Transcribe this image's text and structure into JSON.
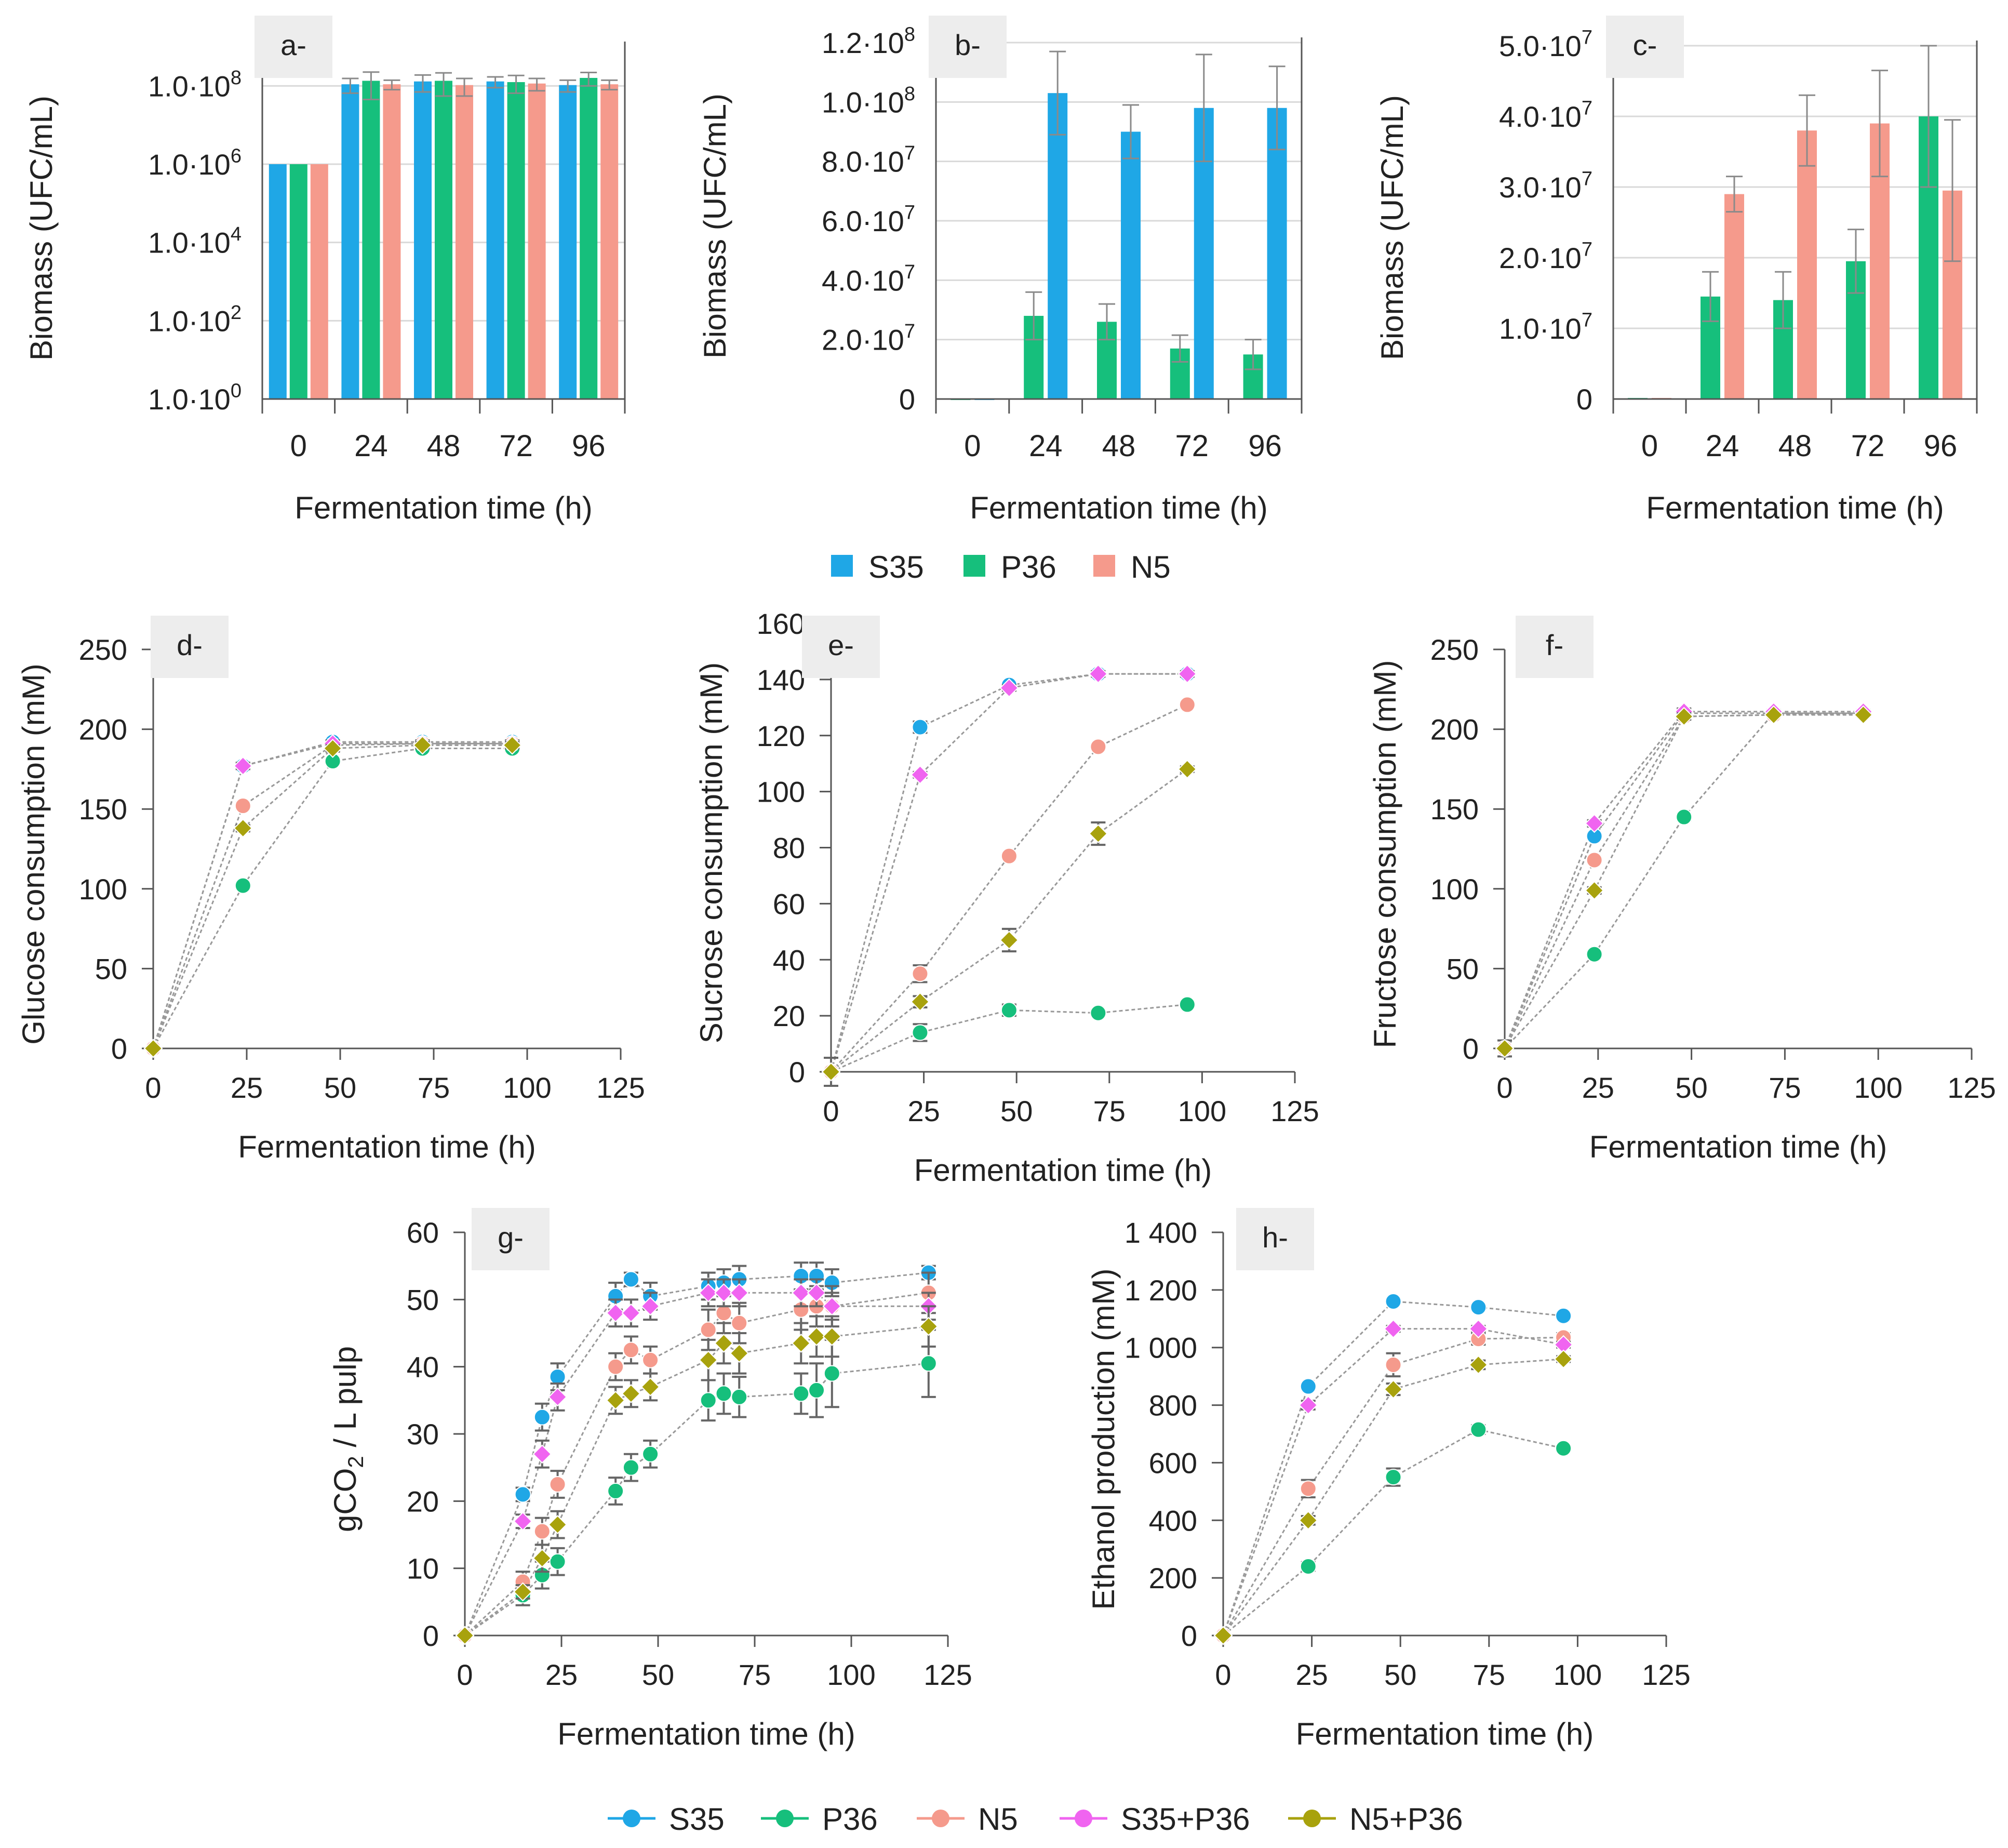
{
  "colors": {
    "S35": "#1fa7e6",
    "P36": "#16bf7c",
    "N5": "#f59a8c",
    "S35+P36": "#f064f0",
    "N5+P36": "#a8a20d",
    "axis": "#555555",
    "grid": "#d9d9d9",
    "tag_bg": "#ededed",
    "connector": "#999999"
  },
  "legend_bars": {
    "items": [
      "S35",
      "P36",
      "N5"
    ]
  },
  "legend_lines": {
    "items": [
      "S35",
      "P36",
      "N5",
      "S35+P36",
      "N5+P36"
    ]
  },
  "chart_data": [
    {
      "id": "a",
      "type": "bar",
      "panel_label": "a-",
      "yscale": "log",
      "ylim": [
        1,
        1000000000.0
      ],
      "ylabel": "Biomass (UFC/mL)",
      "xlabel": "Fermentation time (h)",
      "categories": [
        "0",
        "24",
        "48",
        "72",
        "96"
      ],
      "ytick_labels": [
        {
          "v": 1,
          "m": "1.0·10",
          "e": "0"
        },
        {
          "v": 100,
          "m": "1.0·10",
          "e": "2"
        },
        {
          "v": 10000,
          "m": "1.0·10",
          "e": "4"
        },
        {
          "v": 1000000,
          "m": "1.0·10",
          "e": "6"
        },
        {
          "v": 100000000,
          "m": "1.0·10",
          "e": "8"
        }
      ],
      "series": [
        {
          "name": "S35",
          "values": [
            1000000,
            110000000,
            130000000,
            130000000,
            105000000
          ],
          "errors": [
            0,
            45000000,
            60000000,
            40000000,
            35000000
          ]
        },
        {
          "name": "P36",
          "values": [
            1000000,
            135000000,
            135000000,
            125000000,
            160000000
          ],
          "errors": [
            0,
            90000000,
            80000000,
            60000000,
            60000000
          ]
        },
        {
          "name": "N5",
          "values": [
            1000000,
            110000000,
            105000000,
            115000000,
            110000000
          ],
          "errors": [
            0,
            30000000,
            50000000,
            40000000,
            30000000
          ]
        }
      ]
    },
    {
      "id": "b",
      "type": "bar",
      "panel_label": "b-",
      "ylim": [
        0,
        120000000
      ],
      "ylabel": "Biomass (UFC/mL)",
      "xlabel": "Fermentation time (h)",
      "categories": [
        "0",
        "24",
        "48",
        "72",
        "96"
      ],
      "ytick_labels": [
        {
          "v": 0,
          "m": "0",
          "e": ""
        },
        {
          "v": 20000000,
          "m": "2.0·10",
          "e": "7"
        },
        {
          "v": 40000000,
          "m": "4.0·10",
          "e": "7"
        },
        {
          "v": 60000000,
          "m": "6.0·10",
          "e": "7"
        },
        {
          "v": 80000000,
          "m": "8.0·10",
          "e": "7"
        },
        {
          "v": 100000000,
          "m": "1.0·10",
          "e": "8"
        },
        {
          "v": 120000000,
          "m": "1.2·10",
          "e": "8"
        }
      ],
      "series": [
        {
          "name": "P36",
          "values": [
            0,
            28000000,
            26000000,
            17000000,
            15000000
          ],
          "errors": [
            0,
            8000000,
            6000000,
            4500000,
            5000000
          ]
        },
        {
          "name": "S35",
          "values": [
            0,
            103000000,
            90000000,
            98000000,
            98000000
          ],
          "errors": [
            0,
            14000000,
            9000000,
            18000000,
            14000000
          ]
        }
      ]
    },
    {
      "id": "c",
      "type": "bar",
      "panel_label": "c-",
      "ylim": [
        0,
        50000000
      ],
      "ylabel": "Biomass (UFC/mL)",
      "xlabel": "Fermentation time (h)",
      "categories": [
        "0",
        "24",
        "48",
        "72",
        "96"
      ],
      "ytick_labels": [
        {
          "v": 0,
          "m": "0",
          "e": ""
        },
        {
          "v": 10000000,
          "m": "1.0·10",
          "e": "7"
        },
        {
          "v": 20000000,
          "m": "2.0·10",
          "e": "7"
        },
        {
          "v": 30000000,
          "m": "3.0·10",
          "e": "7"
        },
        {
          "v": 40000000,
          "m": "4.0·10",
          "e": "7"
        },
        {
          "v": 50000000,
          "m": "5.0·10",
          "e": "7"
        }
      ],
      "series": [
        {
          "name": "P36",
          "values": [
            150000,
            14500000,
            14000000,
            19500000,
            40000000
          ],
          "errors": [
            0,
            3500000,
            4000000,
            4500000,
            10000000
          ]
        },
        {
          "name": "N5",
          "values": [
            150000,
            29000000,
            38000000,
            39000000,
            29500000
          ],
          "errors": [
            0,
            2500000,
            5000000,
            7500000,
            10000000
          ]
        }
      ]
    },
    {
      "id": "d",
      "type": "line",
      "panel_label": "d-",
      "ylim": [
        0,
        250
      ],
      "xlim": [
        0,
        125
      ],
      "ylabel": "Glucose consumption (mM)",
      "xlabel": "Fermentation time (h)",
      "yticks": [
        0,
        50,
        100,
        150,
        200,
        250
      ],
      "xticks": [
        0,
        25,
        50,
        75,
        100,
        125
      ],
      "series": [
        {
          "name": "S35",
          "x": [
            0,
            24,
            48,
            72,
            96
          ],
          "y": [
            0,
            177,
            192,
            192,
            192
          ],
          "err": [
            0,
            2,
            2,
            2,
            2
          ]
        },
        {
          "name": "P36",
          "x": [
            0,
            24,
            48,
            72,
            96
          ],
          "y": [
            0,
            102,
            180,
            188,
            188
          ],
          "err": [
            0,
            2,
            2,
            2,
            2
          ]
        },
        {
          "name": "N5",
          "x": [
            0,
            24,
            48,
            72,
            96
          ],
          "y": [
            0,
            152,
            190,
            191,
            191
          ],
          "err": [
            0,
            2,
            2,
            2,
            2
          ]
        },
        {
          "name": "S35+P36",
          "x": [
            0,
            24,
            48,
            72,
            96
          ],
          "y": [
            0,
            177,
            191,
            191,
            191
          ],
          "err": [
            0,
            2,
            2,
            2,
            2
          ]
        },
        {
          "name": "N5+P36",
          "x": [
            0,
            24,
            48,
            72,
            96
          ],
          "y": [
            0,
            138,
            188,
            190,
            190
          ],
          "err": [
            0,
            2,
            2,
            2,
            2
          ]
        }
      ]
    },
    {
      "id": "e",
      "type": "line",
      "panel_label": "e-",
      "ylim": [
        0,
        160
      ],
      "xlim": [
        0,
        125
      ],
      "ylabel": "Sucrose consumption (mM)",
      "xlabel": "Fermentation time (h)",
      "yticks": [
        0,
        20,
        40,
        60,
        80,
        100,
        120,
        140,
        160
      ],
      "xticks": [
        0,
        25,
        50,
        75,
        100,
        125
      ],
      "series": [
        {
          "name": "S35",
          "x": [
            0,
            24,
            48,
            72,
            96
          ],
          "y": [
            0,
            123,
            138,
            142,
            142
          ],
          "err": [
            5,
            2,
            1,
            1,
            1
          ]
        },
        {
          "name": "P36",
          "x": [
            0,
            24,
            48,
            72,
            96
          ],
          "y": [
            0,
            14,
            22,
            21,
            24
          ],
          "err": [
            0,
            3,
            2,
            1,
            1
          ]
        },
        {
          "name": "N5",
          "x": [
            0,
            24,
            48,
            72,
            96
          ],
          "y": [
            0,
            35,
            77,
            116,
            131
          ],
          "err": [
            0,
            3,
            1,
            1,
            1
          ]
        },
        {
          "name": "S35+P36",
          "x": [
            0,
            24,
            48,
            72,
            96
          ],
          "y": [
            0,
            106,
            137,
            142,
            142
          ],
          "err": [
            0,
            1,
            1,
            1,
            1
          ]
        },
        {
          "name": "N5+P36",
          "x": [
            0,
            24,
            48,
            72,
            96
          ],
          "y": [
            0,
            25,
            47,
            85,
            108
          ],
          "err": [
            0,
            2,
            4,
            4,
            1
          ]
        }
      ]
    },
    {
      "id": "f",
      "type": "line",
      "panel_label": "f-",
      "ylim": [
        0,
        250
      ],
      "xlim": [
        0,
        125
      ],
      "ylabel": "Fructose consumption (mM)",
      "xlabel": "Fermentation time (h)",
      "yticks": [
        0,
        50,
        100,
        150,
        200,
        250
      ],
      "xticks": [
        0,
        25,
        50,
        75,
        100,
        125
      ],
      "series": [
        {
          "name": "S35",
          "x": [
            0,
            24,
            48,
            72,
            96
          ],
          "y": [
            0,
            133,
            210,
            210,
            210
          ],
          "err": [
            5,
            2,
            2,
            1,
            1
          ]
        },
        {
          "name": "P36",
          "x": [
            0,
            24,
            48,
            72,
            96
          ],
          "y": [
            0,
            59,
            145,
            210,
            210
          ],
          "err": [
            0,
            2,
            2,
            1,
            1
          ]
        },
        {
          "name": "N5",
          "x": [
            0,
            24,
            48,
            72,
            96
          ],
          "y": [
            0,
            118,
            208,
            209,
            210
          ],
          "err": [
            0,
            2,
            2,
            1,
            1
          ]
        },
        {
          "name": "S35+P36",
          "x": [
            0,
            24,
            48,
            72,
            96
          ],
          "y": [
            0,
            141,
            211,
            211,
            211
          ],
          "err": [
            0,
            2,
            2,
            1,
            1
          ]
        },
        {
          "name": "N5+P36",
          "x": [
            0,
            24,
            48,
            72,
            96
          ],
          "y": [
            0,
            99,
            208,
            209,
            209
          ],
          "err": [
            0,
            2,
            2,
            1,
            1
          ]
        }
      ]
    },
    {
      "id": "g",
      "type": "line",
      "panel_label": "g-",
      "ylim": [
        0,
        60
      ],
      "xlim": [
        0,
        125
      ],
      "ylabel": "gCO",
      "ylabel_sub": "2",
      "ylabel_rest": "/ L pulp",
      "xlabel": "Fermentation time (h)",
      "yticks": [
        0,
        10,
        20,
        30,
        40,
        50,
        60
      ],
      "xticks": [
        0,
        25,
        50,
        75,
        100,
        125
      ],
      "series": [
        {
          "name": "S35",
          "x": [
            0,
            15,
            20,
            24,
            39,
            43,
            48,
            63,
            67,
            71,
            87,
            91,
            95,
            120
          ],
          "y": [
            0,
            21,
            32.5,
            38.5,
            50.5,
            53,
            50.5,
            52,
            52.5,
            53,
            53.5,
            53.5,
            52.5,
            54
          ],
          "err": [
            0,
            1,
            2,
            2,
            2,
            1,
            2,
            2,
            2,
            2,
            2,
            2,
            2,
            1
          ]
        },
        {
          "name": "P36",
          "x": [
            0,
            15,
            20,
            24,
            39,
            43,
            48,
            63,
            67,
            71,
            87,
            91,
            95,
            120
          ],
          "y": [
            0,
            6,
            9,
            11,
            21.5,
            25,
            27,
            35,
            36,
            35.5,
            36,
            36.5,
            39,
            40.5
          ],
          "err": [
            0,
            1.5,
            2,
            2,
            2,
            2,
            2,
            3,
            3,
            3,
            3,
            4,
            5,
            5
          ]
        },
        {
          "name": "N5",
          "x": [
            0,
            15,
            20,
            24,
            39,
            43,
            48,
            63,
            67,
            71,
            87,
            91,
            95,
            120
          ],
          "y": [
            0,
            8,
            15.5,
            22.5,
            40,
            42.5,
            41,
            45.5,
            48,
            46.5,
            48.5,
            49,
            49,
            51
          ],
          "err": [
            0,
            1.5,
            2,
            2,
            2,
            2,
            2,
            3,
            3,
            3,
            3,
            3,
            3,
            3
          ]
        },
        {
          "name": "S35+P36",
          "x": [
            0,
            15,
            20,
            24,
            39,
            43,
            48,
            63,
            67,
            71,
            87,
            91,
            95,
            120
          ],
          "y": [
            0,
            17,
            27,
            35.5,
            48,
            48,
            49,
            51,
            51,
            51,
            51,
            51,
            49,
            49
          ],
          "err": [
            0,
            1,
            2,
            2,
            2,
            2,
            2,
            2,
            2,
            2,
            2,
            2,
            2,
            2
          ]
        },
        {
          "name": "N5+P36",
          "x": [
            0,
            15,
            20,
            24,
            39,
            43,
            48,
            63,
            67,
            71,
            87,
            91,
            95,
            120
          ],
          "y": [
            0,
            6.5,
            11.5,
            16.5,
            35,
            36,
            37,
            41,
            43.5,
            42,
            43.5,
            44.5,
            44.5,
            46
          ],
          "err": [
            0,
            1,
            2,
            2,
            2,
            2,
            2,
            3,
            3,
            3,
            3,
            3,
            3,
            3
          ]
        }
      ]
    },
    {
      "id": "h",
      "type": "line",
      "panel_label": "h-",
      "ylim": [
        0,
        1400
      ],
      "xlim": [
        0,
        125
      ],
      "ylabel": "Ethanol production (mM)",
      "xlabel": "Fermentation time (h)",
      "yticks": [
        0,
        200,
        400,
        600,
        800,
        1000,
        1200,
        1400
      ],
      "ytick_labels": [
        "0",
        "200",
        "400",
        "600",
        "800",
        "1 000",
        "1 200",
        "1 400"
      ],
      "xticks": [
        0,
        25,
        50,
        75,
        100,
        125
      ],
      "series": [
        {
          "name": "S35",
          "x": [
            0,
            24,
            48,
            72,
            96
          ],
          "y": [
            0,
            865,
            1160,
            1140,
            1110
          ],
          "err": [
            0,
            10,
            10,
            10,
            10
          ]
        },
        {
          "name": "P36",
          "x": [
            0,
            24,
            48,
            72,
            96
          ],
          "y": [
            0,
            240,
            550,
            715,
            650
          ],
          "err": [
            0,
            15,
            30,
            15,
            10
          ]
        },
        {
          "name": "N5",
          "x": [
            0,
            24,
            48,
            72,
            96
          ],
          "y": [
            0,
            510,
            940,
            1030,
            1035
          ],
          "err": [
            0,
            30,
            40,
            20,
            15
          ]
        },
        {
          "name": "S35+P36",
          "x": [
            0,
            24,
            48,
            72,
            96
          ],
          "y": [
            0,
            800,
            1065,
            1065,
            1010
          ],
          "err": [
            0,
            15,
            10,
            10,
            10
          ]
        },
        {
          "name": "N5+P36",
          "x": [
            0,
            24,
            48,
            72,
            96
          ],
          "y": [
            0,
            400,
            855,
            940,
            960
          ],
          "err": [
            0,
            15,
            20,
            15,
            10
          ]
        }
      ]
    }
  ]
}
